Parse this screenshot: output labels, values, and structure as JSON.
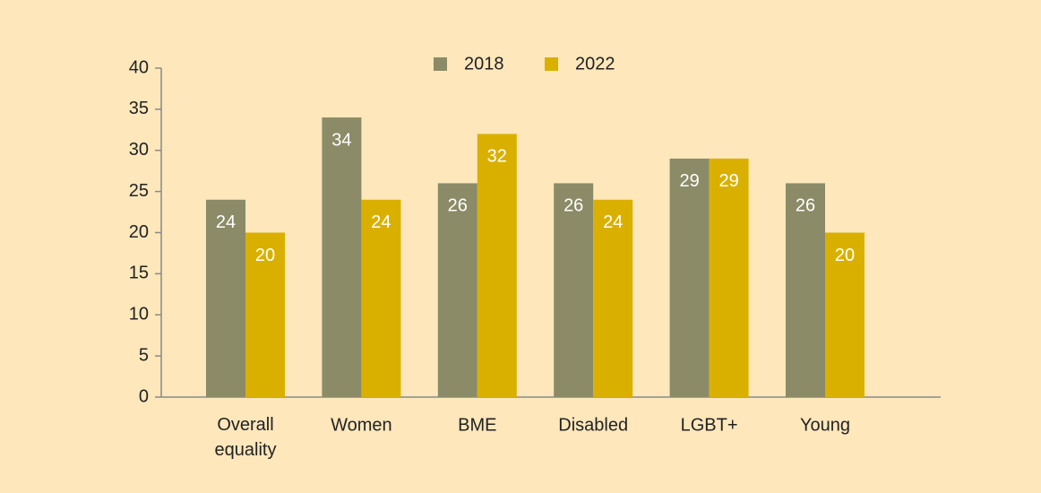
{
  "chart_data": {
    "type": "bar",
    "categories": [
      "Overall equality",
      "Women",
      "BME",
      "Disabled",
      "LGBT+",
      "Young"
    ],
    "series": [
      {
        "name": "2018",
        "color": "#8b8b67",
        "values": [
          24,
          34,
          26,
          26,
          29,
          26
        ]
      },
      {
        "name": "2022",
        "color": "#dab000",
        "values": [
          20,
          24,
          32,
          24,
          29,
          20
        ]
      }
    ],
    "ylim": [
      0,
      40
    ],
    "yticks": [
      0,
      5,
      10,
      15,
      20,
      25,
      30,
      35,
      40
    ],
    "grid": false,
    "legend": "top"
  }
}
